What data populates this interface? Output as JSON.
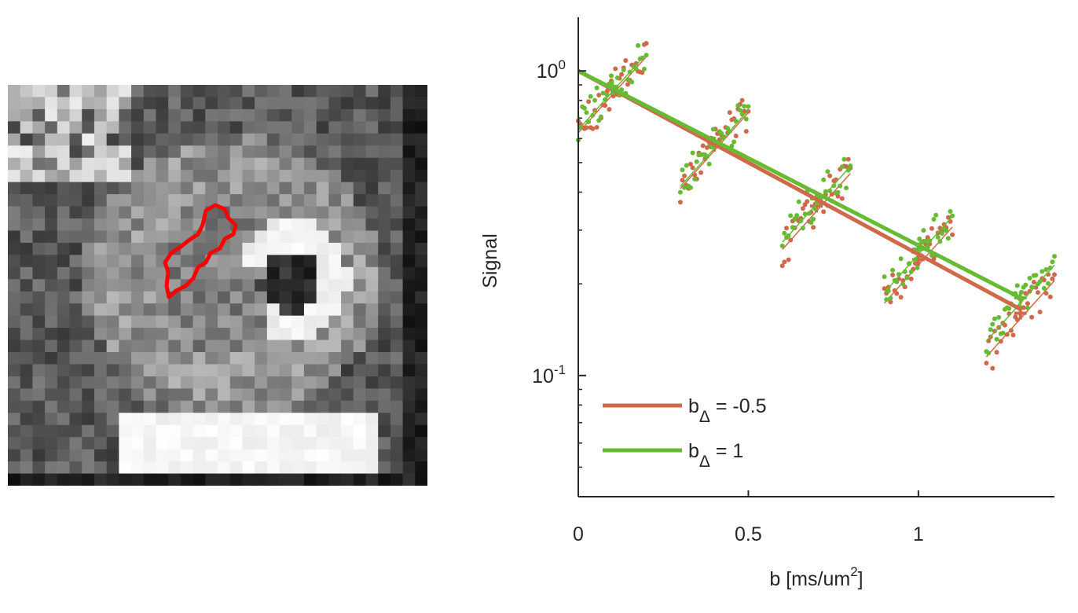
{
  "mri_image": {
    "roi_outline_color": "#ff0000",
    "grid_cols": 34,
    "grid_rows": 33
  },
  "chart_data": {
    "type": "scatter",
    "title": "",
    "xlabel": "b [ms/um",
    "xlabel_sup": "2",
    "xlabel_tail": "]",
    "ylabel": "Signal",
    "xlim": [
      0,
      1.4
    ],
    "ylim": [
      0.04,
      1.5
    ],
    "yscale": "log",
    "xticks": [
      0,
      0.5,
      1
    ],
    "xtick_labels": [
      "0",
      "0.5",
      "1"
    ],
    "yticks": [
      0.1,
      1
    ],
    "ytick_labels": [
      {
        "base": "10",
        "exp": "-1"
      },
      {
        "base": "10",
        "exp": "0"
      }
    ],
    "legend_position": "bottom-left",
    "series": [
      {
        "name": "b",
        "name_sub": "Δ",
        "name_tail": " = -0.5",
        "color": "#d0694a",
        "b_shells": [
          0.1,
          0.4,
          0.7,
          1.0,
          1.3
        ],
        "fit_signal": [
          0.87,
          0.57,
          0.36,
          0.24,
          0.16
        ],
        "fit_line": {
          "x": [
            0,
            1.3
          ],
          "y": [
            1.0,
            0.165
          ]
        }
      },
      {
        "name": "b",
        "name_sub": "Δ",
        "name_tail": " = 1",
        "color": "#66bb33",
        "b_shells": [
          0.1,
          0.4,
          0.7,
          1.0,
          1.3
        ],
        "fit_signal": [
          0.89,
          0.58,
          0.38,
          0.26,
          0.18
        ],
        "fit_line": {
          "x": [
            0,
            1.3
          ],
          "y": [
            1.0,
            0.18
          ]
        }
      }
    ]
  }
}
